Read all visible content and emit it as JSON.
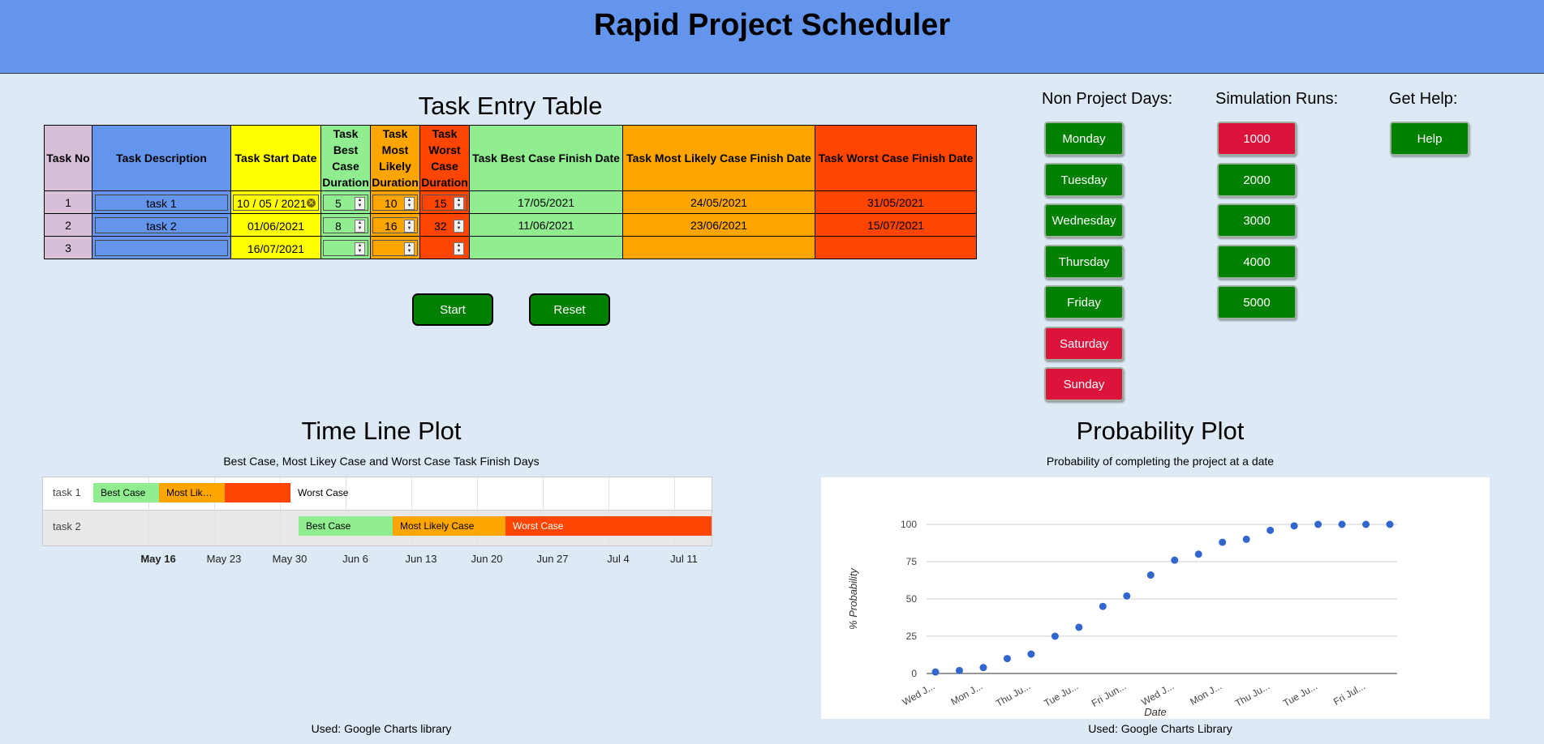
{
  "app": {
    "title": "Rapid Project Scheduler"
  },
  "task_table": {
    "title": "Task Entry Table",
    "headers": {
      "no": "Task No",
      "desc": "Task Description",
      "start": "Task Start Date",
      "best_dur": "Task Best Case Duration",
      "likely_dur": "Task Most Likely Duration",
      "worst_dur": "Task Worst Case Duration",
      "best_fin": "Task Best Case Finish Date",
      "likely_fin": "Task Most Likely Case Finish Date",
      "worst_fin": "Task Worst Case Finish Date"
    },
    "rows": [
      {
        "no": "1",
        "desc": "task 1",
        "start": "10 / 05 / 2021",
        "best": "5",
        "likely": "10",
        "worst": "15",
        "best_fin": "17/05/2021",
        "likely_fin": "24/05/2021",
        "worst_fin": "31/05/2021"
      },
      {
        "no": "2",
        "desc": "task 2",
        "start": "01/06/2021",
        "best": "8",
        "likely": "16",
        "worst": "32",
        "best_fin": "11/06/2021",
        "likely_fin": "23/06/2021",
        "worst_fin": "15/07/2021"
      },
      {
        "no": "3",
        "desc": "",
        "start": "16/07/2021",
        "best": "",
        "likely": "",
        "worst": "",
        "best_fin": "",
        "likely_fin": "",
        "worst_fin": ""
      }
    ]
  },
  "controls": {
    "start": "Start",
    "reset": "Reset"
  },
  "non_project_days": {
    "title": "Non Project Days:",
    "days": [
      {
        "label": "Monday",
        "state": "green"
      },
      {
        "label": "Tuesday",
        "state": "green"
      },
      {
        "label": "Wednesday",
        "state": "green"
      },
      {
        "label": "Thursday",
        "state": "green"
      },
      {
        "label": "Friday",
        "state": "green"
      },
      {
        "label": "Saturday",
        "state": "red"
      },
      {
        "label": "Sunday",
        "state": "red"
      }
    ]
  },
  "simulation_runs": {
    "title": "Simulation Runs:",
    "runs": [
      {
        "label": "1000",
        "state": "red"
      },
      {
        "label": "2000",
        "state": "green"
      },
      {
        "label": "3000",
        "state": "green"
      },
      {
        "label": "4000",
        "state": "green"
      },
      {
        "label": "5000",
        "state": "green"
      }
    ]
  },
  "help": {
    "title": "Get Help:",
    "button": "Help"
  },
  "colors": {
    "green": "#008000",
    "red": "#dc143c",
    "header": "#6495ed",
    "best": "#90ee90",
    "likely": "#ffa500",
    "worst": "#ff4500",
    "point": "#3366cc"
  },
  "timeline": {
    "title": "Time Line Plot",
    "subtitle": "Best Case, Most Likey Case and Worst Case Task Finish Days",
    "rows": [
      {
        "label": "task 1",
        "best_label": "Best Case",
        "likely_label": "Most Lik…",
        "worst_label": "",
        "outside_label": "Worst Case"
      },
      {
        "label": "task 2",
        "best_label": "Best Case",
        "likely_label": "Most Likely Case",
        "worst_label": "Worst Case"
      }
    ],
    "ticks": [
      "May 16",
      "May 23",
      "May 30",
      "Jun 6",
      "Jun 13",
      "Jun 20",
      "Jun 27",
      "Jul 4",
      "Jul 11"
    ],
    "footnote": "Used: Google Charts library"
  },
  "probability": {
    "title": "Probability Plot",
    "subtitle": "Probability of completing the project at a date",
    "footnote": "Used: Google Charts Library"
  },
  "chart_data": {
    "type": "scatter",
    "xlabel": "Date",
    "ylabel": "% Probability",
    "ylim": [
      0,
      100
    ],
    "yticks": [
      0,
      25,
      50,
      75,
      100
    ],
    "x_tick_labels": [
      "Wed J...",
      "Mon J...",
      "Thu Ju...",
      "Tue Ju...",
      "Fri Jun...",
      "Wed J...",
      "Mon J...",
      "Thu Ju...",
      "Tue Ju...",
      "Fri Jul..."
    ],
    "grid": true,
    "legend": "none",
    "values": [
      1,
      2,
      4,
      10,
      13,
      25,
      31,
      45,
      52,
      66,
      76,
      80,
      88,
      90,
      96,
      99,
      100,
      100,
      100,
      100
    ]
  }
}
